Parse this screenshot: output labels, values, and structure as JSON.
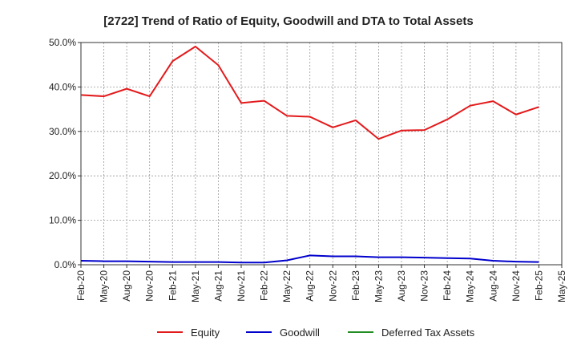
{
  "chart_data": {
    "type": "line",
    "title": "[2722]  Trend of Ratio of Equity, Goodwill and DTA to Total Assets",
    "xlabel": "",
    "ylabel": "",
    "ylim": [
      0,
      50
    ],
    "yticks": [
      0,
      10,
      20,
      30,
      40,
      50
    ],
    "ytick_labels": [
      "0.0%",
      "10.0%",
      "20.0%",
      "30.0%",
      "40.0%",
      "50.0%"
    ],
    "x": [
      "Feb-20",
      "May-20",
      "Aug-20",
      "Nov-20",
      "Feb-21",
      "May-21",
      "Aug-21",
      "Nov-21",
      "Feb-22",
      "May-22",
      "Aug-22",
      "Nov-22",
      "Feb-23",
      "May-23",
      "Aug-23",
      "Nov-23",
      "Feb-24",
      "May-24",
      "Aug-24",
      "Nov-24",
      "Feb-25",
      "May-25"
    ],
    "grid": true,
    "legend_position": "bottom",
    "series": [
      {
        "name": "Equity",
        "color": "#e31a1c",
        "values": [
          38.2,
          37.9,
          39.6,
          37.9,
          45.8,
          49.1,
          44.9,
          36.4,
          36.9,
          33.5,
          33.3,
          30.9,
          32.5,
          28.3,
          30.2,
          30.3,
          32.7,
          35.8,
          36.8,
          33.8,
          35.5,
          null
        ]
      },
      {
        "name": "Goodwill",
        "color": "#0000cc",
        "values": [
          0.9,
          0.8,
          0.8,
          0.7,
          0.6,
          0.6,
          0.6,
          0.5,
          0.5,
          1.0,
          2.1,
          1.9,
          1.9,
          1.7,
          1.7,
          1.6,
          1.5,
          1.4,
          0.9,
          0.7,
          0.6,
          null
        ]
      },
      {
        "name": "Deferred Tax Assets",
        "color": "#228b22",
        "values": [
          null,
          null,
          null,
          null,
          null,
          null,
          null,
          null,
          null,
          null,
          null,
          null,
          null,
          null,
          null,
          null,
          null,
          null,
          null,
          null,
          null,
          null
        ]
      }
    ]
  }
}
